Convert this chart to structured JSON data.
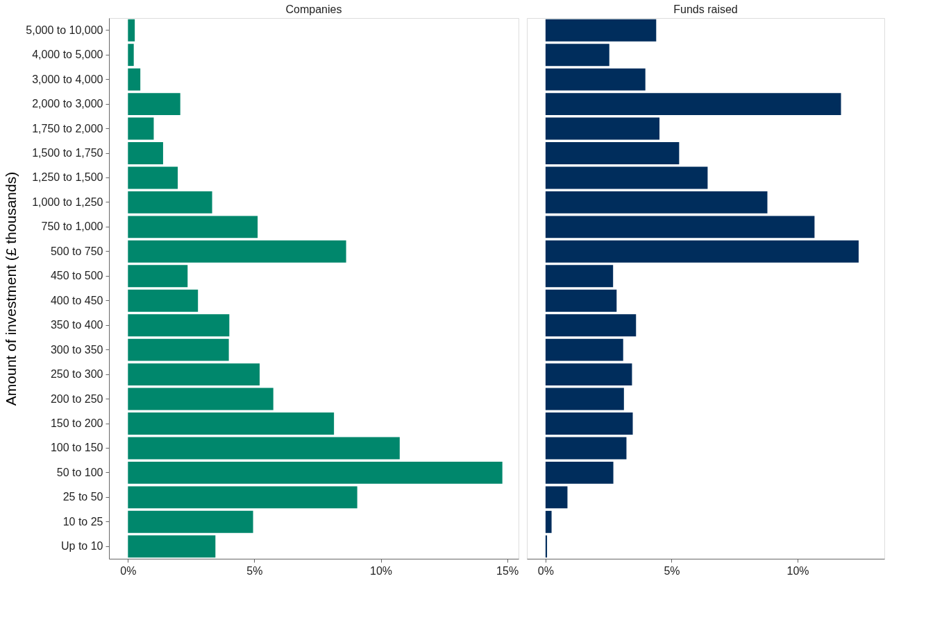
{
  "chart_data": [
    {
      "type": "bar",
      "orientation": "horizontal",
      "title": "Companies",
      "ylabel": "Amount of investment (£ thousands)",
      "categories": [
        "5,000 to 10,000",
        "4,000 to 5,000",
        "3,000 to 4,000",
        "2,000 to 3,000",
        "1,750 to 2,000",
        "1,500 to 1,750",
        "1,250 to 1,500",
        "1,000 to 1,250",
        "750 to 1,000",
        "500 to 750",
        "450 to 500",
        "400 to 450",
        "350 to 400",
        "300 to 350",
        "250 to 300",
        "200 to 250",
        "150 to 200",
        "100 to 150",
        "50 to 100",
        "25 to 50",
        "10 to 25",
        "Up to 10"
      ],
      "values": [
        0.27,
        0.23,
        0.49,
        2.07,
        1.02,
        1.39,
        1.97,
        3.33,
        5.13,
        8.63,
        2.36,
        2.77,
        4.01,
        3.99,
        5.21,
        5.75,
        8.15,
        10.75,
        14.81,
        9.07,
        4.95,
        3.46
      ],
      "color": "#00876c",
      "xlim": [
        -0.75,
        15.45
      ],
      "xticks": [
        {
          "value": 0,
          "label": "0%"
        },
        {
          "value": 5,
          "label": "5%"
        },
        {
          "value": 10,
          "label": "10%"
        },
        {
          "value": 15,
          "label": "15%"
        }
      ],
      "grid": false
    },
    {
      "type": "bar",
      "orientation": "horizontal",
      "title": "Funds raised",
      "tick_labels": "x",
      "values": [
        4.39,
        2.53,
        3.96,
        11.72,
        4.52,
        5.3,
        6.43,
        8.8,
        10.67,
        12.42,
        2.68,
        2.82,
        3.59,
        3.08,
        3.43,
        3.11,
        3.46,
        3.21,
        2.69,
        0.87,
        0.24,
        0.06
      ],
      "color": "#002d5c",
      "xlim": [
        -0.74,
        13.44
      ],
      "xticks": [
        {
          "value": 0,
          "label": "0%"
        },
        {
          "value": 5,
          "label": "5%"
        },
        {
          "value": 10,
          "label": "10%"
        }
      ],
      "grid": false
    }
  ]
}
